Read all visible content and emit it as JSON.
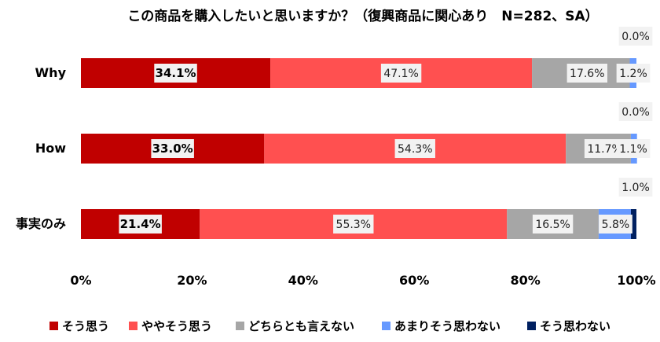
{
  "chart_data": {
    "type": "bar",
    "orientation": "horizontal",
    "stacked": true,
    "title": "この商品を購入したいと思いますか？（復興商品に関心あり　N=282、SA）",
    "categories": [
      "Why",
      "How",
      "事実のみ"
    ],
    "series": [
      {
        "name": "そう思う",
        "color": "#C00000",
        "values": [
          34.1,
          33.0,
          21.4
        ]
      },
      {
        "name": "ややそう思う",
        "color": "#FF5050",
        "values": [
          47.1,
          54.3,
          55.3
        ]
      },
      {
        "name": "どちらとも言えない",
        "color": "#A6A6A6",
        "values": [
          17.6,
          11.7,
          16.5
        ]
      },
      {
        "name": "あまりそう思わない",
        "color": "#6699FF",
        "values": [
          1.2,
          1.1,
          5.8
        ]
      },
      {
        "name": "そう思わない",
        "color": "#002060",
        "values": [
          0.0,
          0.0,
          1.0
        ]
      }
    ],
    "data_labels": [
      [
        "34.1%",
        "47.1%",
        "17.6%",
        "1.2%",
        "0.0%"
      ],
      [
        "33.0%",
        "54.3%",
        "11.7%",
        "1.1%",
        "0.0%"
      ],
      [
        "21.4%",
        "55.3%",
        "16.5%",
        "5.8%",
        "1.0%"
      ]
    ],
    "xlim": [
      0,
      100
    ],
    "xticks": [
      0,
      20,
      40,
      60,
      80,
      100
    ],
    "xtick_labels": [
      "0%",
      "20%",
      "40%",
      "60%",
      "80%",
      "100%"
    ],
    "grid": false,
    "legend_position": "bottom"
  }
}
